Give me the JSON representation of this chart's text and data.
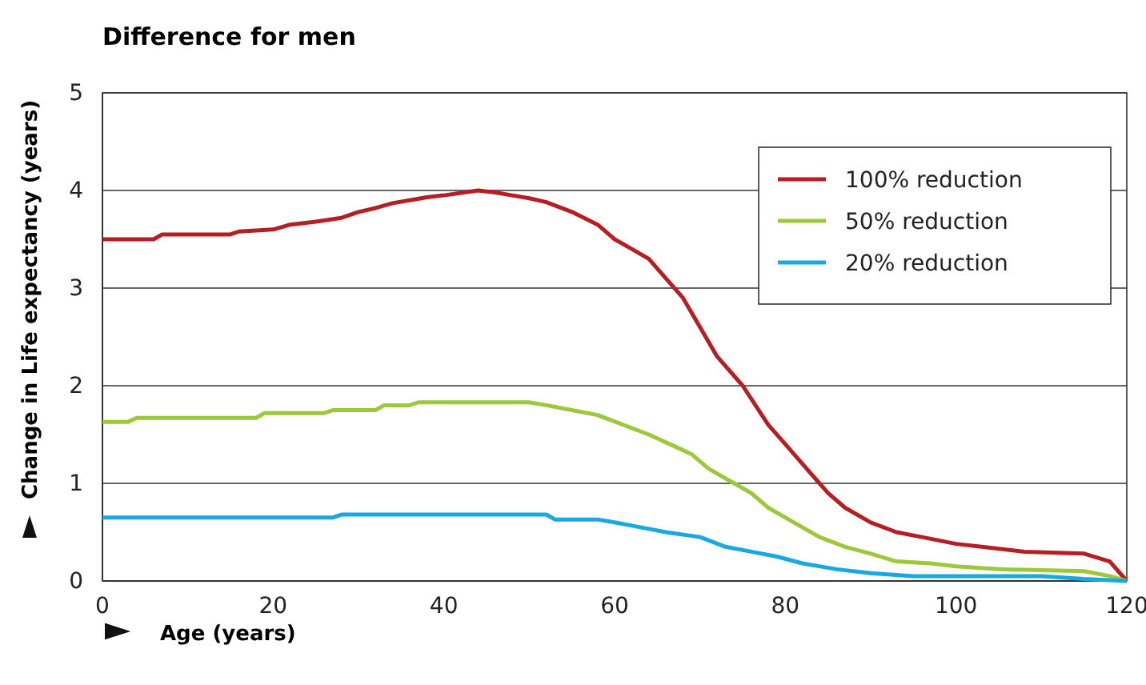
{
  "chart_data": {
    "type": "line",
    "title": "Difference for men",
    "xlabel": "Age (years)",
    "ylabel": "Change in Life expectancy (years)",
    "xlim": [
      0,
      120
    ],
    "xticks": [
      0,
      20,
      40,
      60,
      80,
      100,
      120
    ],
    "ylim": [
      0,
      5
    ],
    "yticks": [
      0,
      1,
      2,
      3,
      4,
      5
    ],
    "grid": "y",
    "legend": "top right",
    "line_style": "solid",
    "series": [
      {
        "name": "100% reduction",
        "color": "#b51f24",
        "x": [
          0,
          6,
          7,
          15,
          16,
          20,
          22,
          25,
          28,
          30,
          32,
          34,
          36,
          38,
          40,
          44,
          46,
          48,
          50,
          52,
          55,
          58,
          60,
          62,
          64,
          66,
          68,
          70,
          72,
          75,
          78,
          80,
          83,
          85,
          87,
          90,
          93,
          96,
          100,
          103,
          108,
          115,
          118,
          120
        ],
        "values": [
          3.5,
          3.5,
          3.55,
          3.55,
          3.58,
          3.6,
          3.65,
          3.68,
          3.72,
          3.78,
          3.82,
          3.87,
          3.9,
          3.93,
          3.95,
          4.0,
          3.98,
          3.95,
          3.92,
          3.88,
          3.78,
          3.65,
          3.5,
          3.4,
          3.3,
          3.1,
          2.9,
          2.6,
          2.3,
          2.0,
          1.6,
          1.4,
          1.1,
          0.9,
          0.75,
          0.6,
          0.5,
          0.45,
          0.38,
          0.35,
          0.3,
          0.28,
          0.2,
          0
        ]
      },
      {
        "name": "50% reduction",
        "color": "#9cc93b",
        "x": [
          0,
          3,
          4,
          18,
          19,
          26,
          27,
          32,
          33,
          36,
          37,
          50,
          52,
          55,
          58,
          61,
          64,
          67,
          69,
          71,
          74,
          76,
          78,
          81,
          84,
          87,
          90,
          93,
          97,
          100,
          105,
          115,
          118,
          120
        ],
        "values": [
          1.63,
          1.63,
          1.67,
          1.67,
          1.72,
          1.72,
          1.75,
          1.75,
          1.8,
          1.8,
          1.83,
          1.83,
          1.8,
          1.75,
          1.7,
          1.6,
          1.5,
          1.38,
          1.3,
          1.15,
          1.0,
          0.9,
          0.75,
          0.6,
          0.45,
          0.35,
          0.28,
          0.2,
          0.18,
          0.15,
          0.12,
          0.1,
          0.05,
          0
        ]
      },
      {
        "name": "20% reduction",
        "color": "#1aa8e0",
        "x": [
          0,
          27,
          28,
          52,
          53,
          58,
          60,
          63,
          66,
          70,
          73,
          76,
          79,
          82,
          86,
          90,
          95,
          110,
          115,
          120
        ],
        "values": [
          0.65,
          0.65,
          0.68,
          0.68,
          0.63,
          0.63,
          0.6,
          0.55,
          0.5,
          0.45,
          0.35,
          0.3,
          0.25,
          0.18,
          0.12,
          0.08,
          0.05,
          0.05,
          0.02,
          0
        ]
      }
    ]
  }
}
